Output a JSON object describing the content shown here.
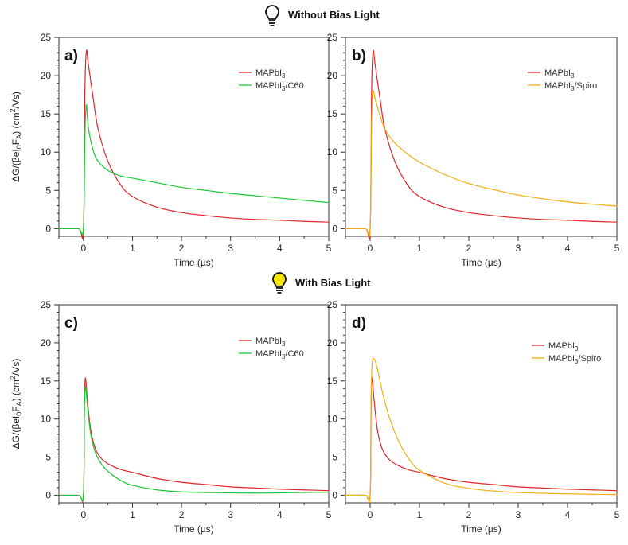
{
  "sections": [
    {
      "title": "Without Bias Light",
      "bulb": "bulb-off-icon"
    },
    {
      "title": "With Bias Light",
      "bulb": "bulb-on-icon"
    }
  ],
  "colors": {
    "red": "#e0262a",
    "green": "#19c832",
    "orange": "#f2ae12",
    "bulb_on": "#f6e600"
  },
  "chart_data": [
    {
      "type": "line",
      "panel_label": "a)",
      "xlabel": "Time (µs)",
      "ylabel": {
        "pre": "ΔG/(βeI",
        "sub1": "0",
        "mid": "F",
        "sub2": "A",
        "post": ") (cm",
        "sup": "2",
        "end": "/Vs)"
      },
      "xlim": [
        -0.5,
        5
      ],
      "ylim": [
        -1,
        25
      ],
      "xticks": [
        0,
        1,
        2,
        3,
        4,
        5
      ],
      "yticks": [
        0,
        5,
        10,
        15,
        20,
        25
      ],
      "x": [
        -0.5,
        -0.1,
        0.0,
        0.03,
        0.06,
        0.1,
        0.2,
        0.3,
        0.5,
        0.75,
        1.0,
        1.5,
        2.0,
        2.5,
        3.0,
        3.5,
        4.0,
        4.5,
        5.0
      ],
      "series": [
        {
          "name": "MAPbI",
          "sub": "3",
          "suffix": "",
          "color": "#e0262a",
          "values": [
            0.0,
            0.0,
            0.0,
            18.0,
            23.2,
            21.5,
            17.0,
            13.0,
            8.8,
            5.8,
            4.2,
            2.8,
            2.1,
            1.7,
            1.4,
            1.2,
            1.1,
            0.95,
            0.85
          ]
        },
        {
          "name": "MAPbI",
          "sub": "3",
          "suffix": "/C60",
          "color": "#19c832",
          "values": [
            0.0,
            0.0,
            0.0,
            12.0,
            16.2,
            13.2,
            10.2,
            8.8,
            7.6,
            6.9,
            6.6,
            6.0,
            5.4,
            5.0,
            4.6,
            4.3,
            4.0,
            3.7,
            3.4
          ]
        }
      ]
    },
    {
      "type": "line",
      "panel_label": "b)",
      "xlabel": "Time (µs)",
      "xlim": [
        -0.5,
        5
      ],
      "ylim": [
        -1,
        25
      ],
      "xticks": [
        0,
        1,
        2,
        3,
        4,
        5
      ],
      "yticks": [
        0,
        5,
        10,
        15,
        20,
        25
      ],
      "x": [
        -0.5,
        -0.1,
        0.0,
        0.03,
        0.06,
        0.1,
        0.2,
        0.3,
        0.5,
        0.75,
        1.0,
        1.5,
        2.0,
        2.5,
        3.0,
        3.5,
        4.0,
        4.5,
        5.0
      ],
      "series": [
        {
          "name": "MAPbI",
          "sub": "3",
          "suffix": "",
          "color": "#e0262a",
          "values": [
            0.0,
            0.0,
            0.0,
            18.0,
            23.2,
            21.5,
            17.0,
            13.0,
            8.8,
            5.8,
            4.2,
            2.8,
            2.1,
            1.7,
            1.4,
            1.2,
            1.1,
            0.95,
            0.85
          ]
        },
        {
          "name": "MAPbI",
          "sub": "3",
          "suffix": "/Spiro",
          "color": "#f2ae12",
          "values": [
            0.0,
            0.0,
            0.0,
            14.0,
            17.9,
            17.0,
            14.8,
            13.0,
            11.2,
            9.8,
            8.7,
            7.1,
            5.9,
            5.1,
            4.4,
            3.9,
            3.5,
            3.2,
            2.95
          ]
        }
      ]
    },
    {
      "type": "line",
      "panel_label": "c)",
      "xlabel": "Time (µs)",
      "ylabel": {
        "pre": "ΔG/(βeI",
        "sub1": "0",
        "mid": "F",
        "sub2": "A",
        "post": ") (cm",
        "sup": "2",
        "end": "/Vs)"
      },
      "xlim": [
        -0.5,
        5
      ],
      "ylim": [
        -1,
        25
      ],
      "xticks": [
        0,
        1,
        2,
        3,
        4,
        5
      ],
      "yticks": [
        0,
        5,
        10,
        15,
        20,
        25
      ],
      "x": [
        -0.5,
        -0.1,
        0.0,
        0.02,
        0.04,
        0.08,
        0.15,
        0.25,
        0.4,
        0.6,
        0.8,
        1.0,
        1.5,
        2.0,
        2.5,
        3.0,
        3.5,
        4.0,
        4.5,
        5.0
      ],
      "series": [
        {
          "name": "MAPbI",
          "sub": "3",
          "suffix": "",
          "color": "#e0262a",
          "values": [
            0.0,
            0.0,
            0.0,
            12.0,
            15.4,
            12.5,
            8.5,
            6.0,
            4.6,
            3.8,
            3.3,
            3.0,
            2.2,
            1.7,
            1.4,
            1.1,
            0.95,
            0.8,
            0.7,
            0.6
          ]
        },
        {
          "name": "MAPbI",
          "sub": "3",
          "suffix": "/C60",
          "color": "#19c832",
          "values": [
            0.0,
            0.0,
            0.0,
            11.0,
            14.3,
            11.8,
            8.0,
            5.5,
            3.8,
            2.6,
            1.8,
            1.3,
            0.7,
            0.45,
            0.35,
            0.3,
            0.28,
            0.3,
            0.35,
            0.4
          ]
        }
      ]
    },
    {
      "type": "line",
      "panel_label": "d)",
      "xlabel": "Time (µs)",
      "xlim": [
        -0.5,
        5
      ],
      "ylim": [
        -1,
        25
      ],
      "xticks": [
        0,
        1,
        2,
        3,
        4,
        5
      ],
      "yticks": [
        0,
        5,
        10,
        15,
        20,
        25
      ],
      "x": [
        -0.5,
        -0.1,
        0.0,
        0.02,
        0.04,
        0.08,
        0.15,
        0.25,
        0.4,
        0.6,
        0.8,
        1.0,
        1.5,
        2.0,
        2.5,
        3.0,
        3.5,
        4.0,
        4.5,
        5.0
      ],
      "series": [
        {
          "name": "MAPbI",
          "sub": "3",
          "suffix": "",
          "color": "#e0262a",
          "values": [
            0.0,
            0.0,
            0.0,
            12.0,
            15.4,
            12.5,
            8.5,
            6.0,
            4.6,
            3.8,
            3.3,
            3.0,
            2.2,
            1.7,
            1.4,
            1.1,
            0.95,
            0.8,
            0.7,
            0.6
          ]
        },
        {
          "name": "MAPbI",
          "sub": "3",
          "suffix": "/Spiro",
          "color": "#f2ae12",
          "values": [
            0.0,
            0.0,
            0.0,
            13.0,
            17.2,
            17.9,
            16.5,
            13.5,
            10.0,
            6.8,
            4.6,
            3.3,
            1.6,
            0.9,
            0.55,
            0.35,
            0.25,
            0.18,
            0.12,
            0.08
          ]
        }
      ]
    }
  ]
}
